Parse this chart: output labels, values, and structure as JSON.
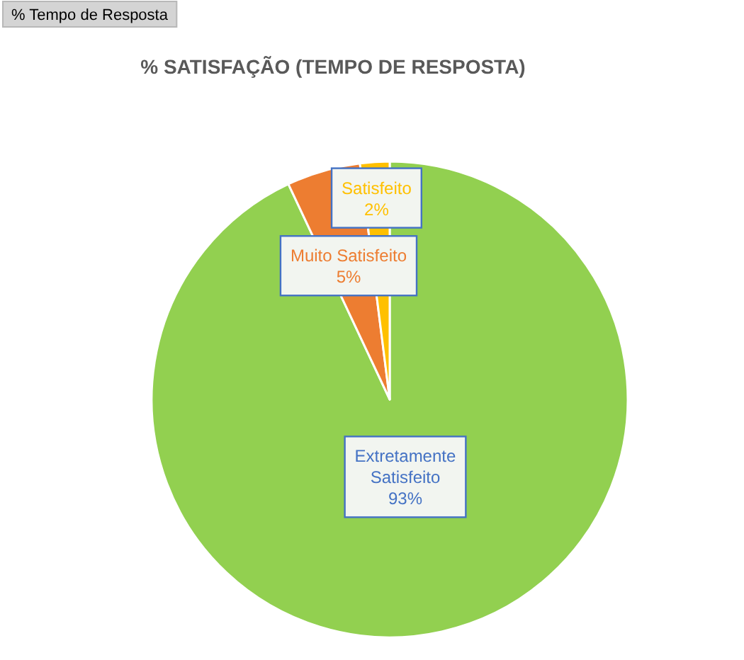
{
  "chart_data": {
    "type": "pie",
    "title": "% SATISFAÇÃO (TEMPO DE RESPOSTA)",
    "categories": [
      "Extretamente Satisfeito",
      "Muito Satisfeito",
      "Satisfeito"
    ],
    "values": [
      93,
      5,
      2
    ],
    "colors": [
      "#92d050",
      "#ed7d31",
      "#ffc000"
    ],
    "value_labels": [
      "93%",
      "5%",
      "2%"
    ],
    "annotations": [
      "% Tempo de Resposta"
    ]
  }
}
